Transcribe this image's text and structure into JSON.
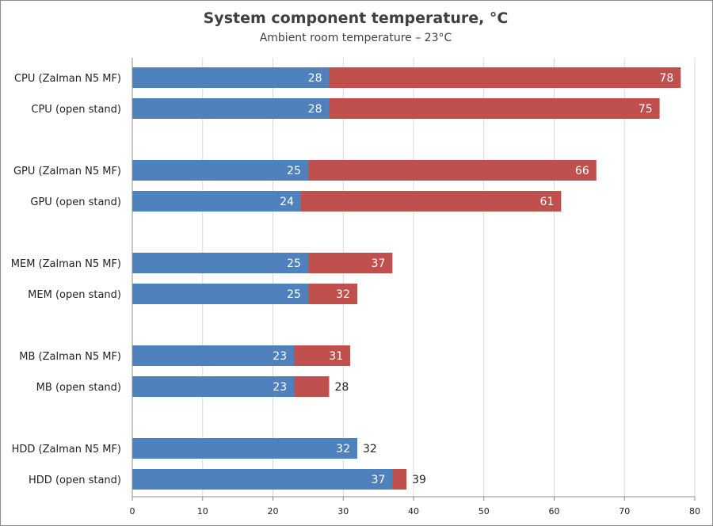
{
  "chart_data": {
    "type": "bar",
    "orientation": "horizontal",
    "stacking": "overlay",
    "title": "System component temperature, °C",
    "subtitle": "Ambient room temperature – 23°C",
    "categories": [
      "CPU (Zalman N5 MF)",
      "CPU (open stand)",
      "GPU (Zalman N5 MF)",
      "GPU (open stand)",
      "MEM (Zalman N5 MF)",
      "MEM (open stand)",
      "MB (Zalman N5 MF)",
      "MB (open stand)",
      "HDD (Zalman N5 MF)",
      "HDD (open stand)"
    ],
    "series": [
      {
        "values": [
          28,
          28,
          25,
          24,
          25,
          25,
          23,
          23,
          32,
          37
        ],
        "color": "#4f81bd"
      },
      {
        "values": [
          78,
          75,
          66,
          61,
          37,
          32,
          31,
          28,
          32,
          39
        ],
        "color": "#c0504d"
      }
    ],
    "xlim": [
      0,
      80
    ],
    "xticks": [
      0,
      10,
      20,
      30,
      40,
      50,
      60,
      70,
      80
    ],
    "grid": true,
    "legend": "none"
  }
}
